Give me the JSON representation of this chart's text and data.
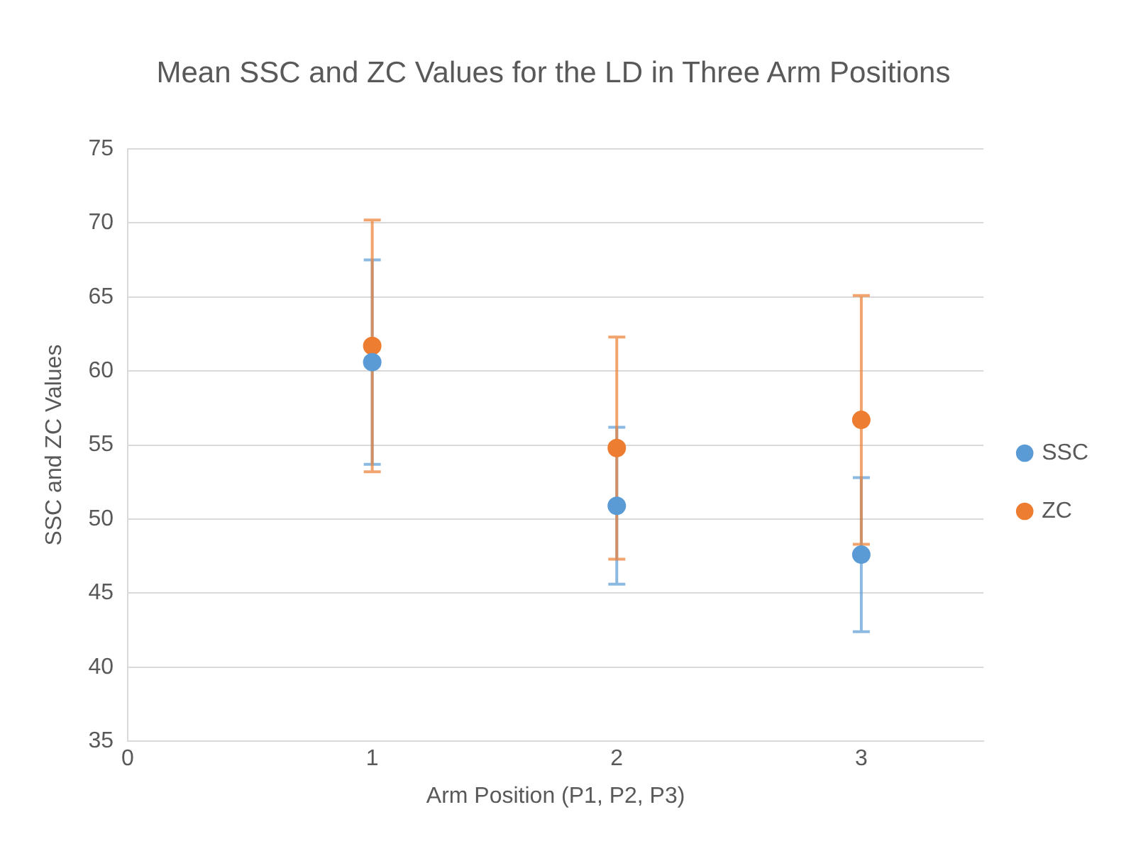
{
  "chart_data": {
    "type": "scatter",
    "title": "Mean SSC and ZC Values for the LD in Three Arm Positions",
    "xlabel": "Arm Position (P1, P2, P3)",
    "ylabel": "SSC and ZC Values",
    "x": [
      1,
      2,
      3
    ],
    "series": [
      {
        "name": "SSC",
        "color": "#5b9bd5",
        "values": [
          60.6,
          50.9,
          47.6
        ],
        "errors": [
          6.9,
          5.3,
          5.2
        ]
      },
      {
        "name": "ZC",
        "color": "#ed7d31",
        "values": [
          61.7,
          54.8,
          56.7
        ],
        "errors": [
          8.5,
          7.5,
          8.4
        ]
      }
    ],
    "xlim": [
      0,
      3.5
    ],
    "xticks": [
      0,
      1,
      2,
      3
    ],
    "ylim": [
      35,
      75
    ],
    "yticks": [
      35,
      40,
      45,
      50,
      55,
      60,
      65,
      70,
      75
    ],
    "grid": "y",
    "legend": "right",
    "marker": "circle"
  }
}
